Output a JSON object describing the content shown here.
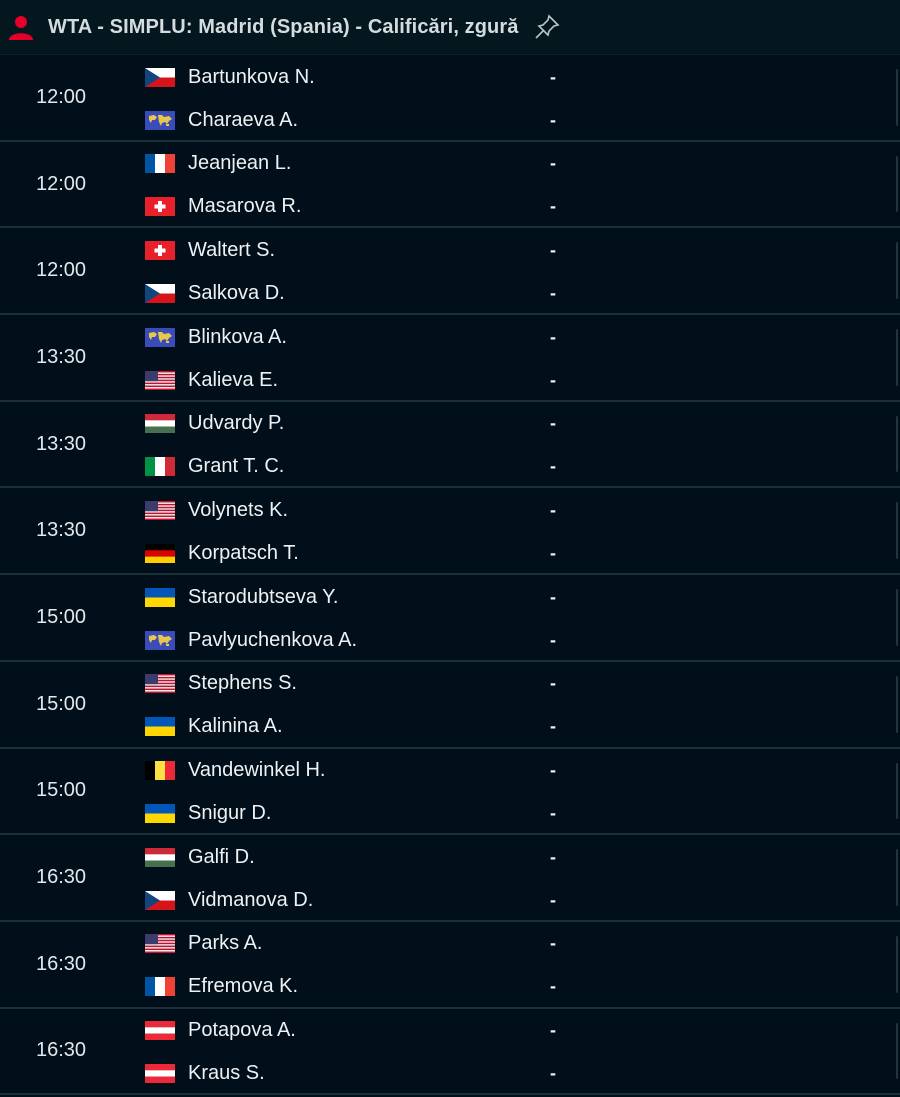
{
  "header": {
    "title": "WTA - SIMPLU: Madrid (Spania) - Calificări, zgură",
    "icon": "user-icon",
    "pin_icon": "pin-icon",
    "accent": "#e4002b"
  },
  "matches": [
    {
      "time": "12:00",
      "players": [
        {
          "name": "Bartunkova N.",
          "flag": "cz",
          "score": "-"
        },
        {
          "name": "Charaeva A.",
          "flag": "world",
          "score": "-"
        }
      ]
    },
    {
      "time": "12:00",
      "players": [
        {
          "name": "Jeanjean L.",
          "flag": "fr",
          "score": "-"
        },
        {
          "name": "Masarova R.",
          "flag": "ch",
          "score": "-"
        }
      ]
    },
    {
      "time": "12:00",
      "players": [
        {
          "name": "Waltert S.",
          "flag": "ch",
          "score": "-"
        },
        {
          "name": "Salkova D.",
          "flag": "cz",
          "score": "-"
        }
      ]
    },
    {
      "time": "13:30",
      "players": [
        {
          "name": "Blinkova A.",
          "flag": "world",
          "score": "-"
        },
        {
          "name": "Kalieva E.",
          "flag": "us",
          "score": "-"
        }
      ]
    },
    {
      "time": "13:30",
      "players": [
        {
          "name": "Udvardy P.",
          "flag": "hu",
          "score": "-"
        },
        {
          "name": "Grant T. C.",
          "flag": "it",
          "score": "-"
        }
      ]
    },
    {
      "time": "13:30",
      "players": [
        {
          "name": "Volynets K.",
          "flag": "us",
          "score": "-"
        },
        {
          "name": "Korpatsch T.",
          "flag": "de",
          "score": "-"
        }
      ]
    },
    {
      "time": "15:00",
      "players": [
        {
          "name": "Starodubtseva Y.",
          "flag": "ua",
          "score": "-"
        },
        {
          "name": "Pavlyuchenkova A.",
          "flag": "world",
          "score": "-"
        }
      ]
    },
    {
      "time": "15:00",
      "players": [
        {
          "name": "Stephens S.",
          "flag": "us",
          "score": "-"
        },
        {
          "name": "Kalinina A.",
          "flag": "ua",
          "score": "-"
        }
      ]
    },
    {
      "time": "15:00",
      "players": [
        {
          "name": "Vandewinkel H.",
          "flag": "be",
          "score": "-"
        },
        {
          "name": "Snigur D.",
          "flag": "ua",
          "score": "-"
        }
      ]
    },
    {
      "time": "16:30",
      "players": [
        {
          "name": "Galfi D.",
          "flag": "hu",
          "score": "-"
        },
        {
          "name": "Vidmanova D.",
          "flag": "cz",
          "score": "-"
        }
      ]
    },
    {
      "time": "16:30",
      "players": [
        {
          "name": "Parks A.",
          "flag": "us",
          "score": "-"
        },
        {
          "name": "Efremova K.",
          "flag": "fr",
          "score": "-"
        }
      ]
    },
    {
      "time": "16:30",
      "players": [
        {
          "name": "Potapova A.",
          "flag": "at",
          "score": "-"
        },
        {
          "name": "Kraus S.",
          "flag": "at",
          "score": "-"
        }
      ]
    }
  ]
}
